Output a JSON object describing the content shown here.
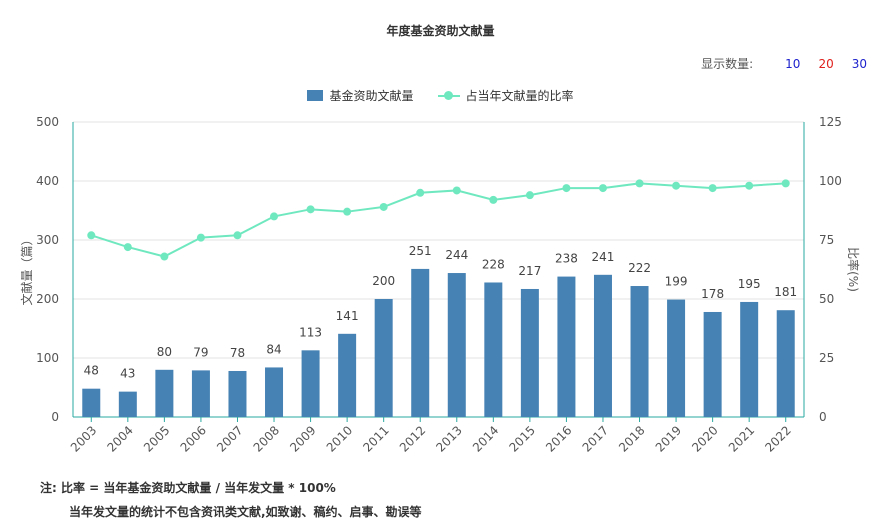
{
  "chart_data": {
    "type": "bar",
    "title": "年度基金资助文献量",
    "categories": [
      "2003",
      "2004",
      "2005",
      "2006",
      "2007",
      "2008",
      "2009",
      "2010",
      "2011",
      "2012",
      "2013",
      "2014",
      "2015",
      "2016",
      "2017",
      "2018",
      "2019",
      "2020",
      "2021",
      "2022"
    ],
    "series": [
      {
        "name": "基金资助文献量",
        "type": "bar",
        "axis": "left",
        "color": "#4682b4",
        "values": [
          48,
          43,
          80,
          79,
          78,
          84,
          113,
          141,
          200,
          251,
          244,
          228,
          217,
          238,
          241,
          222,
          199,
          178,
          195,
          181
        ]
      },
      {
        "name": "占当年文献量的比率",
        "type": "line",
        "axis": "right",
        "color": "#6fe8c0",
        "values": [
          77,
          72,
          68,
          76,
          77,
          85,
          88,
          87,
          89,
          95,
          96,
          92,
          94,
          97,
          97,
          99,
          98,
          97,
          98,
          99
        ]
      }
    ],
    "ylabel": "文献量（篇）",
    "y2label": "比率(%)",
    "ylim": [
      0,
      500
    ],
    "y2lim": [
      0,
      125
    ],
    "yticks": [
      "0",
      "100",
      "200",
      "300",
      "400",
      "500"
    ],
    "y2ticks": [
      "0",
      "25",
      "50",
      "75",
      "100",
      "125"
    ],
    "grid": true,
    "legend_position": "top-center"
  },
  "controls": {
    "display_count_label": "显示数量:",
    "options": [
      {
        "label": "10",
        "color": "#1e22cc"
      },
      {
        "label": "20",
        "color": "#e0201c"
      },
      {
        "label": "30",
        "color": "#1e22cc"
      }
    ]
  },
  "notes": {
    "line1": "注:   比率 = 当年基金资助文献量 / 当年发文量 * 100%",
    "line2": "当年发文量的统计不包含资讯类文献,如致谢、稿约、启事、勘误等"
  }
}
